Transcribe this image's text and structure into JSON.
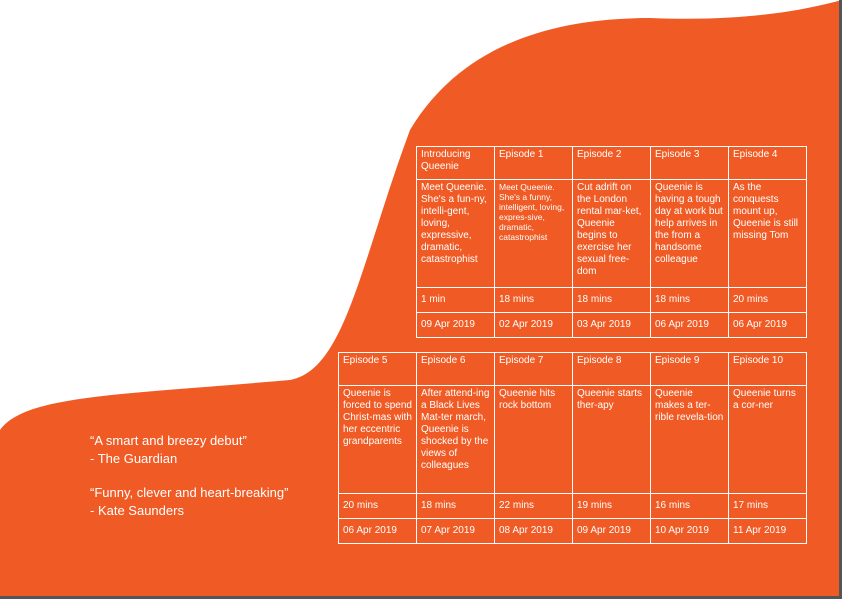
{
  "colors": {
    "background": "#ffffff",
    "accent": "#f05a24",
    "text": "#ffffff",
    "edge": "#555555"
  },
  "top_grid": {
    "columns": [
      {
        "title": "Introducing Queenie",
        "synopsis": "Meet Queenie. She's a fun-ny, intelli-gent, loving, expressive, dramatic, catastrophist",
        "duration": "1 min",
        "date": "09 Apr 2019"
      },
      {
        "title": "Episode 1",
        "synopsis": "Meet Queenie. She's a funny, intelligent, loving, expres-sive, dramatic, catastrophist",
        "duration": "18 mins",
        "date": "02 Apr 2019"
      },
      {
        "title": "Episode 2",
        "synopsis": "Cut adrift on the London rental mar-ket, Queenie begins to exercise her sexual free-dom",
        "duration": "18 mins",
        "date": "03 Apr 2019"
      },
      {
        "title": "Episode 3",
        "synopsis": "Queenie is having a tough day at work but help arrives in the from a handsome colleague",
        "duration": "18 mins",
        "date": "06 Apr 2019"
      },
      {
        "title": "Episode 4",
        "synopsis": "As the conquests mount up, Queenie is still missing Tom",
        "duration": "20 mins",
        "date": "06 Apr 2019"
      }
    ]
  },
  "bottom_grid": {
    "columns": [
      {
        "title": "Episode 5",
        "synopsis": "Queenie is forced to spend Christ-mas with her eccentric grandparents",
        "duration": "20 mins",
        "date": "06 Apr 2019"
      },
      {
        "title": "Episode 6",
        "synopsis": "After attend-ing a Black Lives Mat-ter march, Queenie is shocked by the views of colleagues",
        "duration": "18 mins",
        "date": "07 Apr 2019"
      },
      {
        "title": "Episode 7",
        "synopsis": "Queenie hits rock bottom",
        "duration": "22 mins",
        "date": "08 Apr 2019"
      },
      {
        "title": "Episode 8",
        "synopsis": "Queenie starts ther-apy",
        "duration": "19 mins",
        "date": "09 Apr 2019"
      },
      {
        "title": "Episode 9",
        "synopsis": "Queenie makes a ter-rible revela-tion",
        "duration": "16 mins",
        "date": "10 Apr 2019"
      },
      {
        "title": "Episode 10",
        "synopsis": "Queenie turns a cor-ner",
        "duration": "17 mins",
        "date": "11 Apr 2019"
      }
    ]
  },
  "quotes": [
    {
      "text": "“A smart and breezy debut”",
      "source": "- The Guardian"
    },
    {
      "text": "“Funny, clever and heart-breaking”",
      "source": "- Kate Saunders"
    }
  ]
}
